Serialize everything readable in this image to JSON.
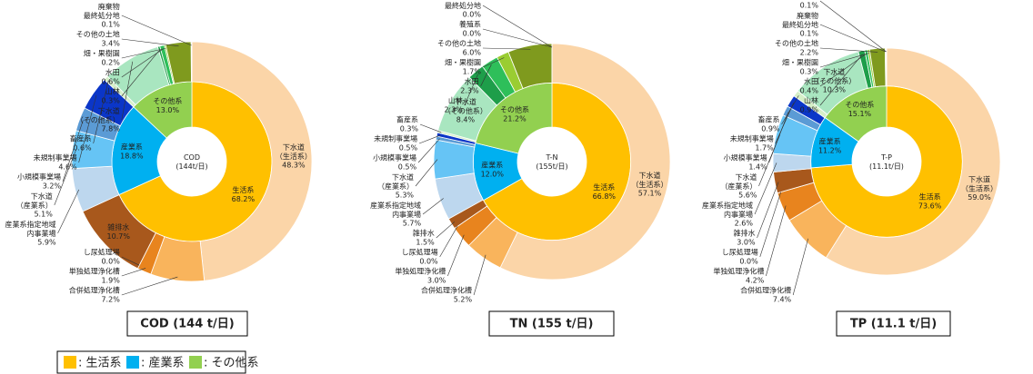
{
  "chart_data": [
    {
      "type": "pie",
      "title": "COD (144 t/日)",
      "center_label": "COD\n(144t/日)",
      "inner": {
        "categories": [
          "生活系",
          "産業系",
          "その他系"
        ],
        "values": [
          68.2,
          18.8,
          13.0
        ],
        "value_labels": [
          "68.2%",
          "18.8%",
          "13.0%"
        ],
        "colors": [
          "#FFC000",
          "#00B0F0",
          "#92D050"
        ]
      },
      "outer": {
        "categories": [
          "下水道\n（生活系）",
          "合併処理浄化槽",
          "単独処理浄化槽",
          "し尿処理場",
          "雑排水",
          "産業系指定地域\n内事業場",
          "下水道\n（産業系）",
          "小規模事業場",
          "未規制事業場",
          "畜産系",
          "下水道\n（その他系）",
          "山林",
          "水田",
          "畑・果樹園",
          "その他の土地",
          "廃棄物\n最終処分地"
        ],
        "values": [
          48.3,
          7.2,
          1.9,
          0.0,
          10.7,
          5.9,
          5.1,
          3.2,
          4.6,
          0.6,
          7.8,
          0.3,
          0.6,
          0.2,
          3.4,
          0.1
        ],
        "value_labels": [
          "48.3%",
          "7.2%",
          "1.9%",
          "0.0%",
          "10.7%",
          "5.9%",
          "5.1%",
          "3.2%",
          "4.6%",
          "0.6%",
          "7.8%",
          "0.3%",
          "0.6%",
          "0.2%",
          "3.4%",
          "0.1%"
        ],
        "colors": [
          "#FBD5A8",
          "#F9B45C",
          "#E8841E",
          "#C9691A",
          "#A8581C",
          "#BDD7EE",
          "#66C4F5",
          "#5B9BD5",
          "#0B36C8",
          "#D6EFC8",
          "#A9E6C0",
          "#1E9E4A",
          "#2EBF5A",
          "#9ACD32",
          "#7F9A1E",
          "#4F6228"
        ]
      }
    },
    {
      "type": "pie",
      "title": "TN (155 t/日)",
      "center_label": "T-N\n(155t/日)",
      "inner": {
        "categories": [
          "生活系",
          "産業系",
          "その他系"
        ],
        "values": [
          66.8,
          12.0,
          21.2
        ],
        "value_labels": [
          "66.8%",
          "12.0%",
          "21.2%"
        ],
        "colors": [
          "#FFC000",
          "#00B0F0",
          "#92D050"
        ]
      },
      "outer": {
        "categories": [
          "下水道\n（生活系）",
          "合併処理浄化槽",
          "単独処理浄化槽",
          "し尿処理場",
          "雑排水",
          "産業系指定地域\n内事業場",
          "下水道\n（産業系）",
          "小規模事業場",
          "未規制事業場",
          "畜産系",
          "下水道\n（その他系）",
          "山林",
          "水田",
          "畑・果樹園",
          "その他の土地",
          "廃棄物\n最終処分地",
          "養殖系"
        ],
        "values": [
          57.1,
          5.2,
          3.0,
          0.0,
          1.5,
          5.7,
          5.3,
          0.5,
          0.5,
          0.3,
          8.4,
          2.3,
          2.3,
          1.7,
          6.0,
          0.0,
          0.0
        ],
        "value_labels": [
          "57.1%",
          "5.2%",
          "3.0%",
          "0.0%",
          "1.5%",
          "5.7%",
          "5.3%",
          "0.5%",
          "0.5%",
          "0.3%",
          "8.4%",
          "2.3%",
          "2.3%",
          "1.7%",
          "6.0%",
          "0.0%",
          "0.0%"
        ],
        "colors": [
          "#FBD5A8",
          "#F9B45C",
          "#E8841E",
          "#C9691A",
          "#A8581C",
          "#BDD7EE",
          "#66C4F5",
          "#5B9BD5",
          "#0B36C8",
          "#D6EFC8",
          "#A9E6C0",
          "#1E9E4A",
          "#2EBF5A",
          "#9ACD32",
          "#7F9A1E",
          "#4F6228",
          "#C4E0A0"
        ]
      }
    },
    {
      "type": "pie",
      "title": "TP (11.1 t/日)",
      "center_label": "T-P\n(11.1t/日)",
      "inner": {
        "categories": [
          "生活系",
          "産業系",
          "その他系"
        ],
        "values": [
          73.6,
          11.2,
          15.1
        ],
        "value_labels": [
          "73.6%",
          "11.2%",
          "15.1%"
        ],
        "colors": [
          "#FFC000",
          "#00B0F0",
          "#92D050"
        ]
      },
      "outer": {
        "categories": [
          "下水道\n（生活系）",
          "合併処理浄化槽",
          "単独処理浄化槽",
          "し尿処理場",
          "雑排水",
          "産業系指定地域\n内事業場",
          "下水道\n（産業系）",
          "小規模事業場",
          "未規制事業場",
          "畜産系",
          "下水道\n（その他系）",
          "山林",
          "水田",
          "畑・果樹園",
          "その他の土地",
          "廃棄物\n最終処分地",
          "養殖系"
        ],
        "values": [
          59.0,
          7.4,
          4.2,
          0.0,
          3.0,
          2.6,
          5.6,
          1.4,
          1.7,
          0.9,
          10.3,
          0.9,
          0.4,
          0.3,
          2.2,
          0.1,
          0.1
        ],
        "value_labels": [
          "59.0%",
          "7.4%",
          "4.2%",
          "0.0%",
          "3.0%",
          "2.6%",
          "5.6%",
          "1.4%",
          "1.7%",
          "0.9%",
          "10.3%",
          "0.9%",
          "0.4%",
          "0.3%",
          "2.2%",
          "0.1%",
          "0.1%"
        ],
        "colors": [
          "#FBD5A8",
          "#F9B45C",
          "#E8841E",
          "#C9691A",
          "#A8581C",
          "#BDD7EE",
          "#66C4F5",
          "#5B9BD5",
          "#0B36C8",
          "#D6EFC8",
          "#A9E6C0",
          "#1E9E4A",
          "#2EBF5A",
          "#9ACD32",
          "#7F9A1E",
          "#4F6228",
          "#C4E0A0"
        ]
      }
    }
  ],
  "legend": {
    "items": [
      {
        "label": ": 生活系",
        "color": "#FFC000"
      },
      {
        "label": ": 産業系",
        "color": "#00B0F0"
      },
      {
        "label": ": その他系",
        "color": "#92D050"
      }
    ]
  }
}
